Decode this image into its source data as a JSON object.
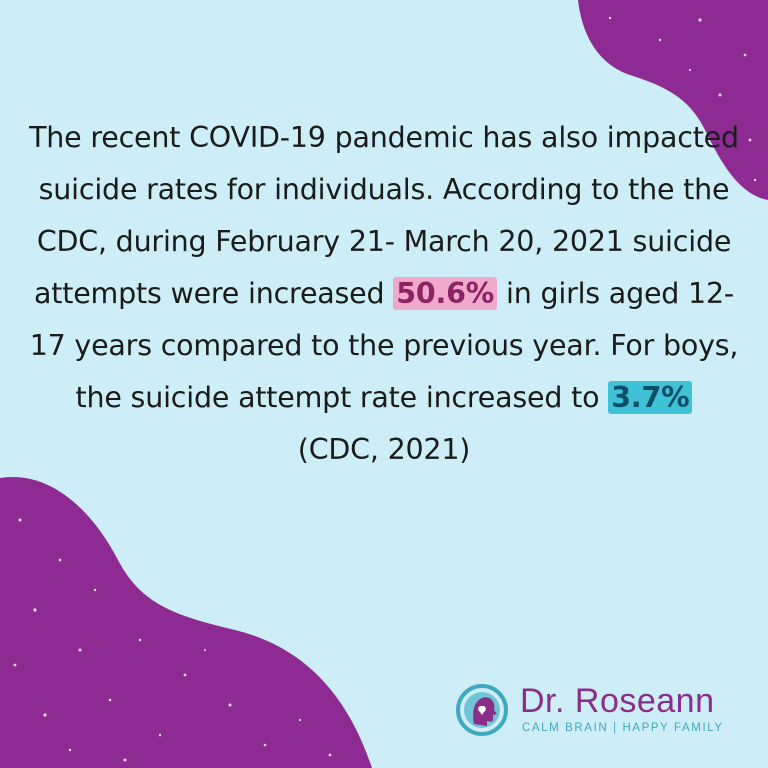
{
  "colors": {
    "background": "#cdeef7",
    "blob": "#8e2b93",
    "highlight_pink": "#efaacb",
    "highlight_cyan": "#3fc1d6",
    "brand_purple": "#8a2e8a",
    "brand_teal": "#3fa9bf"
  },
  "paragraph": {
    "part1": "The recent COVID-19 pandemic has also impacted suicide rates for individuals. According to the the CDC, during February 21- March 20, 2021 suicide attempts were increased",
    "stat_girls": "50.6%",
    "part2": "in girls aged 12-17 years compared to the previous year. For boys, the suicide attempt rate increased to",
    "stat_boys": "3.7%",
    "citation": "(CDC, 2021)"
  },
  "logo": {
    "icon": "head-profile-icon",
    "name": "Dr. Roseann",
    "tagline": "CALM BRAIN | HAPPY FAMILY"
  }
}
